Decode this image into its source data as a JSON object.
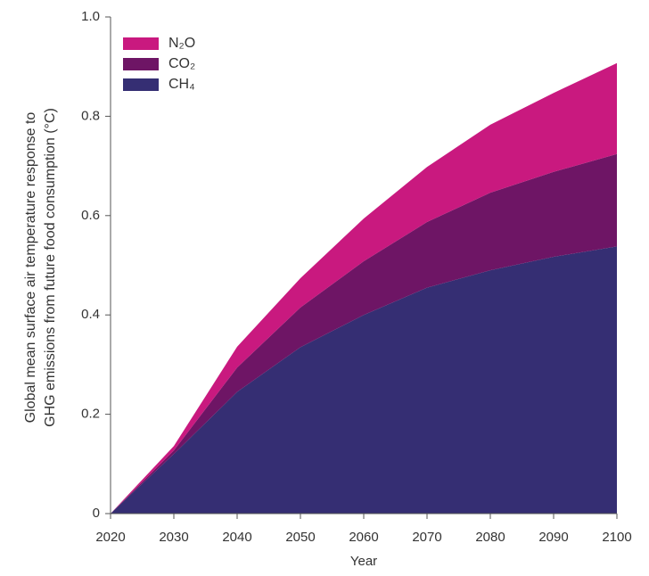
{
  "chart_data": {
    "type": "stacked-area",
    "xlabel": "Year",
    "ylabel": [
      "Global mean surface air temperature response to",
      "GHG emissions from future food consumption (°C)"
    ],
    "x": [
      2020,
      2030,
      2040,
      2050,
      2060,
      2070,
      2080,
      2090,
      2100
    ],
    "series": [
      {
        "name": "CH₄",
        "color": "#352e73",
        "values": [
          0,
          0.12,
          0.245,
          0.335,
          0.4,
          0.455,
          0.49,
          0.517,
          0.538
        ]
      },
      {
        "name": "CO₂",
        "color": "#6e1565",
        "values": [
          0,
          0.007,
          0.049,
          0.08,
          0.108,
          0.132,
          0.156,
          0.171,
          0.186
        ]
      },
      {
        "name": "N₂O",
        "color": "#c9197f",
        "values": [
          0,
          0.009,
          0.042,
          0.059,
          0.086,
          0.111,
          0.137,
          0.159,
          0.183
        ]
      }
    ],
    "xlim": [
      2020,
      2100
    ],
    "xticks": [
      2020,
      2030,
      2040,
      2050,
      2060,
      2070,
      2080,
      2090,
      2100
    ],
    "ylim": [
      0,
      1
    ],
    "yticks": [
      0,
      0.2,
      0.4,
      0.6,
      0.8,
      {
        "value": 1,
        "label": "1.0"
      }
    ],
    "legend": "top-left"
  }
}
